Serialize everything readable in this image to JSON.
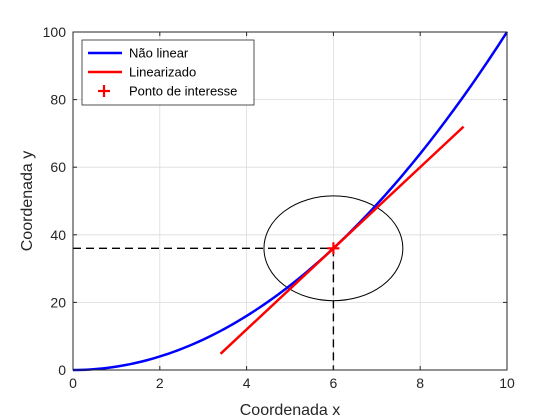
{
  "chart_data": {
    "type": "line",
    "title": "",
    "xlabel": "Coordenada x",
    "ylabel": "Coordenada y",
    "xlim": [
      0,
      10
    ],
    "ylim": [
      0,
      100
    ],
    "xticks": [
      0,
      2,
      4,
      6,
      8,
      10
    ],
    "yticks": [
      0,
      20,
      40,
      60,
      80,
      100
    ],
    "grid": true,
    "legend_position": "top-left",
    "series": [
      {
        "name": "Não linear",
        "function": "y = x^2",
        "x": [
          0,
          0.5,
          1,
          1.5,
          2,
          2.5,
          3,
          3.5,
          4,
          4.5,
          5,
          5.5,
          6,
          6.5,
          7,
          7.5,
          8,
          8.5,
          9,
          9.5,
          10
        ],
        "y": [
          0,
          0.25,
          1,
          2.25,
          4,
          6.25,
          9,
          12.25,
          16,
          20.25,
          25,
          30.25,
          36,
          42.25,
          49,
          56.25,
          64,
          72.25,
          81,
          90.25,
          100
        ],
        "color": "#0000ff"
      },
      {
        "name": "Linearizado",
        "function": "y = 12x - 36",
        "x": [
          3.4,
          9
        ],
        "y": [
          4.8,
          72
        ],
        "color": "#ff0000"
      },
      {
        "name": "Ponto de interesse",
        "marker": "+",
        "x": [
          6
        ],
        "y": [
          36
        ],
        "color": "#ff0000"
      }
    ],
    "annotations": {
      "guide_lines": {
        "point": [
          6,
          36
        ],
        "style": "dashed",
        "color": "#000000"
      },
      "ellipse": {
        "center": [
          6,
          36
        ],
        "rx": 1.6,
        "ry": 15.5,
        "color": "#000000"
      }
    }
  }
}
